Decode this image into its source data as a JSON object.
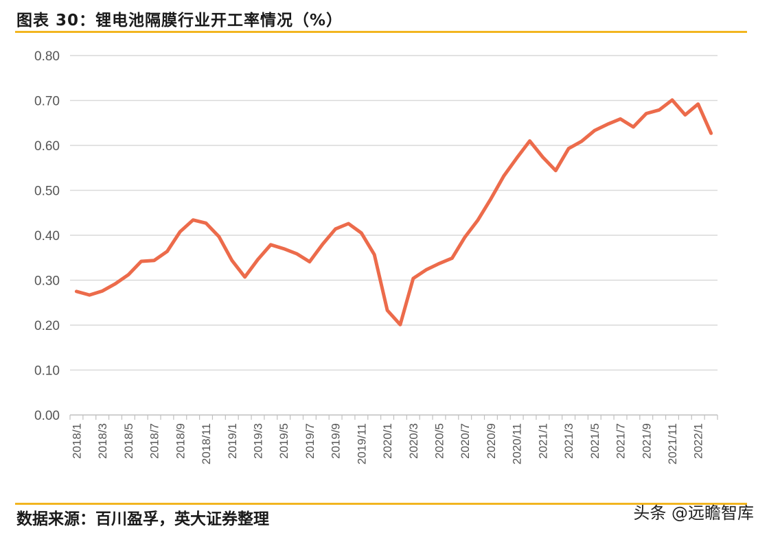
{
  "header": {
    "title": "图表 30：锂电池隔膜行业开工率情况（%）"
  },
  "footer": {
    "source": "数据来源：百川盈孚，英大证券整理",
    "watermark": "头条 @远瞻智库"
  },
  "chart_data": {
    "type": "line",
    "title": "图表 30：锂电池隔膜行业开工率情况（%）",
    "xlabel": "",
    "ylabel": "",
    "ylim": [
      0,
      0.8
    ],
    "yticks": [
      "0.00",
      "0.10",
      "0.20",
      "0.30",
      "0.40",
      "0.50",
      "0.60",
      "0.70",
      "0.80"
    ],
    "grid": true,
    "color": "#ec6b4b",
    "x": [
      "2018/1",
      "2018/2",
      "2018/3",
      "2018/4",
      "2018/5",
      "2018/6",
      "2018/7",
      "2018/8",
      "2018/9",
      "2018/10",
      "2018/11",
      "2018/12",
      "2019/1",
      "2019/2",
      "2019/3",
      "2019/4",
      "2019/5",
      "2019/6",
      "2019/7",
      "2019/8",
      "2019/9",
      "2019/10",
      "2019/11",
      "2019/12",
      "2020/1",
      "2020/2",
      "2020/3",
      "2020/4",
      "2020/5",
      "2020/6",
      "2020/7",
      "2020/8",
      "2020/9",
      "2020/10",
      "2020/11",
      "2020/12",
      "2021/1",
      "2021/2",
      "2021/3",
      "2021/4",
      "2021/5",
      "2021/6",
      "2021/7",
      "2021/8",
      "2021/9",
      "2021/10",
      "2021/11",
      "2021/12",
      "2022/1",
      "2022/2"
    ],
    "xtick_labels": [
      "2018/1",
      "2018/3",
      "2018/5",
      "2018/7",
      "2018/9",
      "2018/11",
      "2019/1",
      "2019/3",
      "2019/5",
      "2019/7",
      "2019/9",
      "2019/11",
      "2020/1",
      "2020/3",
      "2020/5",
      "2020/7",
      "2020/9",
      "2020/11",
      "2021/1",
      "2021/3",
      "2021/5",
      "2021/7",
      "2021/9",
      "2021/11",
      "2022/1"
    ],
    "series": [
      {
        "values": [
          0.275,
          0.267,
          0.276,
          0.292,
          0.312,
          0.342,
          0.344,
          0.364,
          0.408,
          0.434,
          0.427,
          0.397,
          0.344,
          0.307,
          0.346,
          0.379,
          0.37,
          0.359,
          0.341,
          0.38,
          0.414,
          0.426,
          0.405,
          0.357,
          0.233,
          0.201,
          0.304,
          0.323,
          0.337,
          0.349,
          0.396,
          0.434,
          0.481,
          0.532,
          0.572,
          0.61,
          0.574,
          0.544,
          0.593,
          0.609,
          0.633,
          0.647,
          0.659,
          0.641,
          0.671,
          0.679,
          0.701,
          0.668,
          0.692,
          0.627
        ]
      }
    ]
  }
}
